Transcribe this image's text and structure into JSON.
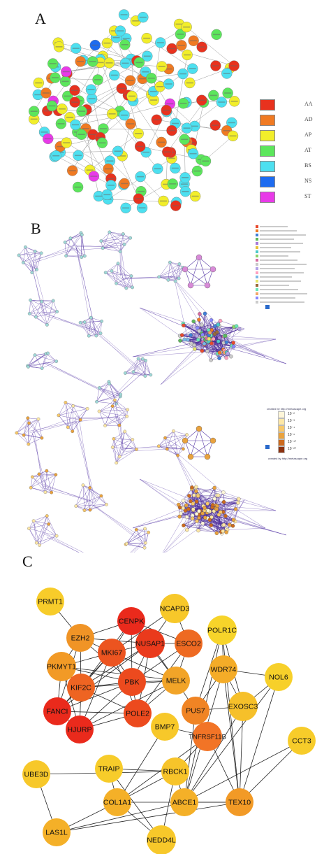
{
  "panels": {
    "a": {
      "letter": "A",
      "legend": [
        {
          "label": "AA",
          "color": "#e8321e"
        },
        {
          "label": "AD",
          "color": "#f07a22"
        },
        {
          "label": "AP",
          "color": "#f2ee2a"
        },
        {
          "label": "AT",
          "color": "#5ce65c"
        },
        {
          "label": "BS",
          "color": "#4de0f0"
        },
        {
          "label": "NS",
          "color": "#1e6cf0"
        },
        {
          "label": "ST",
          "color": "#e83ae8"
        }
      ]
    },
    "b": {
      "letter": "B",
      "credit": "created by http://metascape.org",
      "pvalue_scale": [
        "10⁻²",
        "10⁻³",
        "10⁻⁴",
        "10⁻⁶",
        "10⁻¹⁰",
        "10⁻²⁰"
      ],
      "pvalue_colors": [
        "#fff6d8",
        "#fde7a6",
        "#f7c86a",
        "#e9a23e",
        "#cc6a1e",
        "#8c3210"
      ]
    },
    "c": {
      "letter": "C",
      "nodes": [
        {
          "label": "PRMT1",
          "color": "#f7cc2a"
        },
        {
          "label": "NCAPD3",
          "color": "#f7c82a"
        },
        {
          "label": "CENPK",
          "color": "#ea2a1c"
        },
        {
          "label": "EZH2",
          "color": "#f09426"
        },
        {
          "label": "NUSAP1",
          "color": "#ea3a1c"
        },
        {
          "label": "ESCO2",
          "color": "#ee6a22"
        },
        {
          "label": "POLR1C",
          "color": "#f7d42a"
        },
        {
          "label": "MKI67",
          "color": "#ec5420"
        },
        {
          "label": "PKMYT1",
          "color": "#f29a26"
        },
        {
          "label": "WDR74",
          "color": "#f4ac28"
        },
        {
          "label": "NOL6",
          "color": "#f7d02a"
        },
        {
          "label": "PBK",
          "color": "#ec4a1e"
        },
        {
          "label": "MELK",
          "color": "#f2a428"
        },
        {
          "label": "KIF2C",
          "color": "#ee6422"
        },
        {
          "label": "FANCI",
          "color": "#ea2a1c"
        },
        {
          "label": "PUS7",
          "color": "#f08424"
        },
        {
          "label": "POLE2",
          "color": "#ec4a1e"
        },
        {
          "label": "EXOSC3",
          "color": "#f6c02a"
        },
        {
          "label": "HJURP",
          "color": "#ea2a1c"
        },
        {
          "label": "BMP7",
          "color": "#f7c82a"
        },
        {
          "label": "TNFRSF11B",
          "color": "#f27426"
        },
        {
          "label": "CCT3",
          "color": "#f7cc2a"
        },
        {
          "label": "UBE3D",
          "color": "#f7c82a"
        },
        {
          "label": "TRAIP",
          "color": "#f7cc2a"
        },
        {
          "label": "RBCK1",
          "color": "#f7c42a"
        },
        {
          "label": "COL1A1",
          "color": "#f4b028"
        },
        {
          "label": "ABCE1",
          "color": "#f4b028"
        },
        {
          "label": "TEX10",
          "color": "#f29a26"
        },
        {
          "label": "LAS1L",
          "color": "#f4b028"
        },
        {
          "label": "NEDD4L",
          "color": "#f7c82a"
        }
      ]
    }
  }
}
